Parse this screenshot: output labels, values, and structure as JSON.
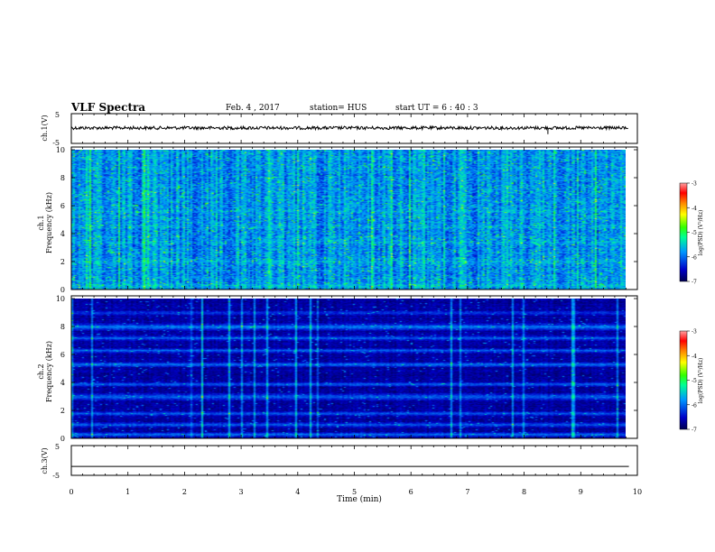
{
  "header": {
    "title": "VLF Spectra",
    "date": "Feb. 4 , 2017",
    "station": "station= HUS",
    "start": "start  UT =  6 : 40 : 3"
  },
  "chart_data": [
    {
      "type": "line",
      "name": "ch1-waveform",
      "ylabel": "ch.1(V)",
      "ylim": [
        -5,
        5
      ],
      "yticks": [
        "5",
        "-5"
      ],
      "xlim": [
        0,
        10
      ],
      "note_level": 0
    },
    {
      "type": "heatmap",
      "name": "ch1-spectrogram",
      "ylabel": "ch.1\nFrequency (kHz)",
      "ylim": [
        0,
        10
      ],
      "yticks": [
        "0",
        "2",
        "4",
        "6",
        "8",
        "10"
      ],
      "xlim": [
        0,
        9.85
      ],
      "zlim": [
        -7,
        -3
      ],
      "colorbar": {
        "label": "log(PSD) (V²/Hz)",
        "ticks": [
          "-3",
          "-4",
          "-5",
          "-6",
          "-7"
        ]
      }
    },
    {
      "type": "heatmap",
      "name": "ch2-spectrogram",
      "ylabel": "ch.2\nFrequency (kHz)",
      "ylim": [
        0,
        10
      ],
      "yticks": [
        "0",
        "2",
        "4",
        "6",
        "8",
        "10"
      ],
      "xlim": [
        0,
        9.85
      ],
      "zlim": [
        -7,
        -3
      ],
      "colorbar": {
        "label": "log(PSD) (V²/Hz)",
        "ticks": [
          "-3",
          "-4",
          "-5",
          "-6",
          "-7"
        ]
      }
    },
    {
      "type": "line",
      "name": "ch3-waveform",
      "ylabel": "ch.3(V)",
      "ylim": [
        -5,
        5
      ],
      "yticks": [
        "5",
        "-5"
      ],
      "xlim": [
        0,
        10
      ],
      "level": -2
    }
  ],
  "xaxis": {
    "label": "Time  (min)",
    "ticks": [
      "0",
      "1",
      "2",
      "3",
      "4",
      "5",
      "6",
      "7",
      "8",
      "9",
      "10"
    ]
  },
  "colors": {
    "colormap": [
      "#000050",
      "#0000b4",
      "#0064ff",
      "#00c8ff",
      "#00ff96",
      "#64ff00",
      "#ffff00",
      "#ff8c00",
      "#ff0000",
      "#ff9696"
    ]
  }
}
